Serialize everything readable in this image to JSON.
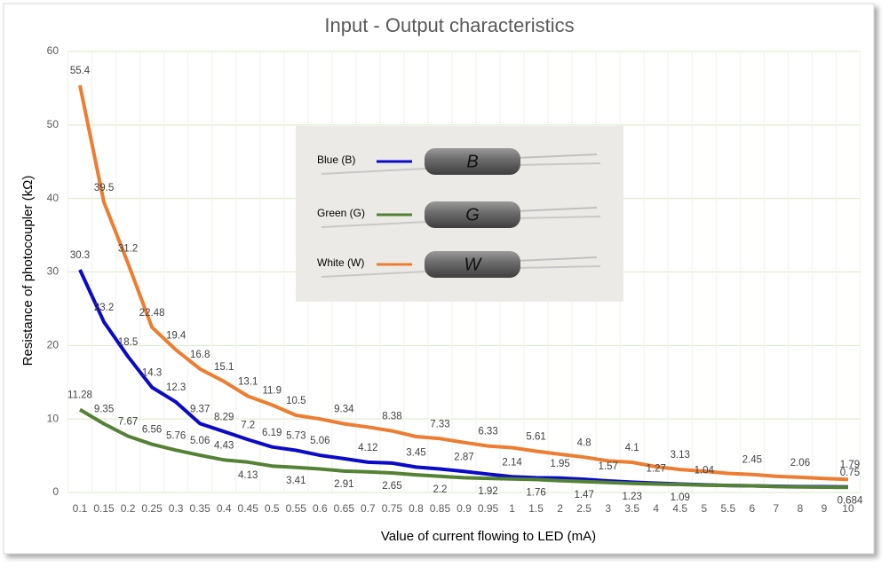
{
  "chart_data": {
    "type": "line",
    "title": "Input - Output characteristics",
    "x_label": "Value of current flowing to LED (mA)",
    "y_label": "Resistance of photocoupler (kΩ)",
    "categories": [
      "0.1",
      "0.15",
      "0.2",
      "0.25",
      "0.3",
      "0.35",
      "0.4",
      "0.45",
      "0.5",
      "0.55",
      "0.6",
      "0.65",
      "0.7",
      "0.75",
      "0.8",
      "0.85",
      "0.9",
      "0.95",
      "1",
      "1.5",
      "2",
      "2.5",
      "3",
      "3.5",
      "4",
      "4.5",
      "5",
      "5.5",
      "6",
      "7",
      "8",
      "9",
      "10"
    ],
    "ylim": [
      0,
      60
    ],
    "yticks": [
      0,
      10,
      20,
      30,
      40,
      50,
      60
    ],
    "grid": true,
    "series": [
      {
        "name": "White (W)",
        "color": "#ed7d31",
        "values": [
          55.4,
          39.5,
          31.2,
          22.48,
          19.4,
          16.8,
          15.1,
          13.1,
          11.9,
          10.5,
          10.0,
          9.34,
          8.9,
          8.38,
          7.6,
          7.33,
          6.8,
          6.33,
          6.1,
          5.61,
          5.2,
          4.8,
          4.3,
          4.1,
          3.5,
          3.13,
          2.9,
          2.6,
          2.45,
          2.2,
          2.06,
          1.9,
          1.79
        ],
        "value_labels": [
          "55.4",
          "39.5",
          "31.2",
          "22.48",
          "19.4",
          "16.8",
          "15.1",
          "13.1",
          "11.9",
          "10.5",
          null,
          "9.34",
          null,
          "8.38",
          null,
          "7.33",
          null,
          "6.33",
          null,
          "5.61",
          null,
          "4.8",
          null,
          "4.1",
          null,
          "3.13",
          null,
          null,
          "2.45",
          null,
          "2.06",
          null,
          "1.79"
        ]
      },
      {
        "name": "Blue (B)",
        "color": "#0a0ac8",
        "values": [
          30.3,
          23.2,
          18.5,
          14.3,
          12.3,
          9.37,
          8.29,
          7.2,
          6.19,
          5.73,
          5.06,
          4.6,
          4.12,
          4.0,
          3.45,
          3.2,
          2.87,
          2.5,
          2.14,
          2.0,
          1.95,
          1.8,
          1.57,
          1.4,
          1.27,
          1.15,
          1.04,
          0.95,
          0.9,
          0.85,
          0.8,
          0.78,
          0.75
        ],
        "value_labels": [
          "30.3",
          "23.2",
          "18.5",
          "14.3",
          "12.3",
          "9.37",
          "8.29",
          "7.2",
          "6.19",
          "5.73",
          "5.06",
          null,
          "4.12",
          null,
          "3.45",
          null,
          "2.87",
          null,
          "2.14",
          null,
          "1.95",
          null,
          "1.57",
          null,
          "1.27",
          null,
          "1.04",
          null,
          null,
          null,
          null,
          null,
          "0.75"
        ]
      },
      {
        "name": "Green (G)",
        "color": "#548235",
        "values": [
          11.28,
          9.35,
          7.67,
          6.56,
          5.76,
          5.06,
          4.43,
          4.13,
          3.6,
          3.41,
          3.2,
          2.91,
          2.8,
          2.65,
          2.4,
          2.2,
          2.0,
          1.92,
          1.85,
          1.76,
          1.6,
          1.47,
          1.35,
          1.23,
          1.15,
          1.09,
          1.0,
          0.95,
          0.9,
          0.8,
          0.75,
          0.72,
          0.684
        ],
        "value_labels": [
          "11.28",
          "9.35",
          "7.67",
          "6.56",
          "5.76",
          "5.06",
          "4.43",
          "4.13",
          null,
          "3.41",
          null,
          "2.91",
          null,
          "2.65",
          null,
          "2.2",
          null,
          "1.92",
          null,
          "1.76",
          null,
          "1.47",
          null,
          "1.23",
          null,
          "1.09",
          null,
          null,
          null,
          null,
          null,
          null,
          "0.684"
        ]
      }
    ],
    "photo_letters": [
      "B",
      "G",
      "W"
    ]
  }
}
